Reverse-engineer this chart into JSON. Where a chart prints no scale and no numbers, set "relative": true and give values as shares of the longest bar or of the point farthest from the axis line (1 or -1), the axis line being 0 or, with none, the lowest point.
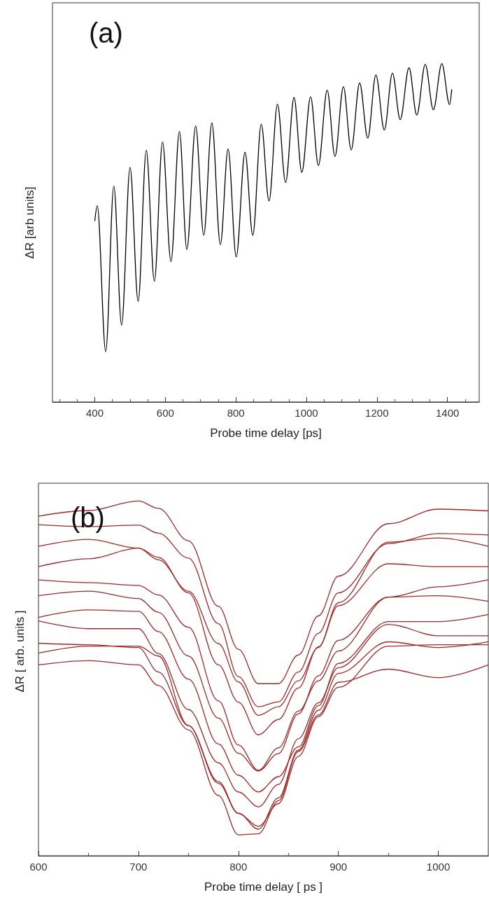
{
  "chart_data": [
    {
      "type": "line",
      "title": "(a)",
      "xlabel": "Probe time delay [ps]",
      "ylabel": "ΔR [arb units]",
      "relative": true,
      "tick_labels": "x",
      "xlim": [
        280,
        1490
      ],
      "xticks": [
        400,
        600,
        800,
        1000,
        1200,
        1400
      ],
      "x": [
        400,
        407,
        431,
        454,
        476,
        500,
        523,
        546,
        569,
        592,
        616,
        640,
        661,
        686,
        709,
        732,
        756,
        778,
        801,
        826,
        848,
        872,
        894,
        918,
        941,
        965,
        987,
        1012,
        1034,
        1059,
        1081,
        1105,
        1127,
        1151,
        1174,
        1197,
        1221,
        1244,
        1266,
        1291,
        1313,
        1337,
        1360,
        1384,
        1406,
        1412
      ],
      "series": [
        {
          "color": "#000000",
          "values": [
            0.535,
            0.58,
            0.149,
            0.638,
            0.227,
            0.693,
            0.297,
            0.744,
            0.357,
            0.769,
            0.415,
            0.8,
            0.451,
            0.816,
            0.493,
            0.825,
            0.465,
            0.748,
            0.429,
            0.738,
            0.493,
            0.821,
            0.594,
            0.88,
            0.649,
            0.9,
            0.679,
            0.902,
            0.699,
            0.922,
            0.726,
            0.932,
            0.745,
            0.943,
            0.78,
            0.967,
            0.804,
            0.972,
            0.835,
            0.988,
            0.848,
            0.998,
            0.864,
            1.0,
            0.879,
            0.924
          ]
        }
      ]
    },
    {
      "type": "line",
      "title": "(b)",
      "xlabel": "Probe time delay [ ps ]",
      "ylabel": "ΔR [ arb. units ]",
      "relative": true,
      "tick_labels": "x",
      "xlim": [
        600,
        1050
      ],
      "xticks": [
        600,
        700,
        800,
        900,
        1000
      ],
      "x": [
        600,
        650,
        700,
        720,
        750,
        780,
        800,
        820,
        840,
        860,
        880,
        900,
        950,
        1000,
        1050
      ],
      "series": [
        {
          "color": "#9e2a2a",
          "values": [
            0.957,
            0.973,
            1.0,
            0.979,
            0.888,
            0.703,
            0.582,
            0.485,
            0.485,
            0.566,
            0.676,
            0.788,
            0.936,
            0.977,
            0.972
          ]
        },
        {
          "color": "#9e2a2a",
          "values": [
            0.933,
            0.928,
            0.932,
            0.909,
            0.839,
            0.654,
            0.505,
            0.42,
            0.434,
            0.518,
            0.627,
            0.741,
            0.88,
            0.908,
            0.904
          ]
        },
        {
          "color": "#9e2a2a",
          "values": [
            0.872,
            0.892,
            0.867,
            0.834,
            0.746,
            0.598,
            0.49,
            0.396,
            0.42,
            0.493,
            0.587,
            0.713,
            0.884,
            0.896,
            0.872
          ]
        },
        {
          "color": "#9e2a2a",
          "values": [
            0.815,
            0.837,
            0.867,
            0.841,
            0.741,
            0.538,
            0.433,
            0.341,
            0.384,
            0.473,
            0.589,
            0.705,
            0.823,
            0.815,
            0.815
          ]
        },
        {
          "color": "#9e2a2a",
          "values": [
            0.778,
            0.77,
            0.762,
            0.735,
            0.644,
            0.437,
            0.312,
            0.241,
            0.304,
            0.408,
            0.493,
            0.577,
            0.729,
            0.758,
            0.778
          ]
        },
        {
          "color": "#9e2a2a",
          "values": [
            0.733,
            0.746,
            0.725,
            0.686,
            0.563,
            0.388,
            0.289,
            0.239,
            0.288,
            0.4,
            0.507,
            0.607,
            0.729,
            0.733,
            0.717
          ]
        },
        {
          "color": "#9e2a2a",
          "values": [
            0.672,
            0.693,
            0.689,
            0.632,
            0.498,
            0.315,
            0.227,
            0.18,
            0.223,
            0.307,
            0.423,
            0.542,
            0.66,
            0.66,
            0.68
          ]
        },
        {
          "color": "#9e2a2a",
          "values": [
            0.662,
            0.64,
            0.64,
            0.57,
            0.412,
            0.262,
            0.18,
            0.138,
            0.201,
            0.33,
            0.431,
            0.53,
            0.652,
            0.62,
            0.62
          ]
        },
        {
          "color": "#9e2a2a",
          "values": [
            0.599,
            0.595,
            0.587,
            0.518,
            0.367,
            0.204,
            0.119,
            0.083,
            0.147,
            0.28,
            0.392,
            0.475,
            0.591,
            0.595,
            0.595
          ]
        },
        {
          "color": "#9e2a2a",
          "values": [
            0.571,
            0.591,
            0.591,
            0.563,
            0.367,
            0.209,
            0.12,
            0.075,
            0.163,
            0.298,
            0.41,
            0.514,
            0.603,
            0.587,
            0.603
          ]
        },
        {
          "color": "#9e2a2a",
          "values": [
            0.538,
            0.55,
            0.538,
            0.48,
            0.355,
            0.17,
            0.059,
            0.062,
            0.155,
            0.294,
            0.397,
            0.489,
            0.526,
            0.502,
            0.538
          ]
        }
      ]
    }
  ]
}
